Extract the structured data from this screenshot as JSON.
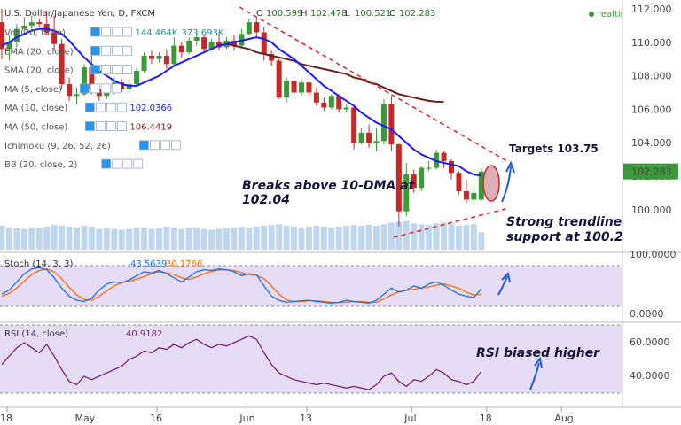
{
  "header": {
    "symbol": "U.S. Dollar/Japanese Yen, D, FXCM",
    "ohlc_prefix": "O",
    "open": "100.599",
    "high_label": "H",
    "high": "102.478",
    "low_label": "L",
    "low": "100.521",
    "close_label": "C",
    "close": "102.283",
    "realtime": "realtime"
  },
  "indicators": [
    {
      "label": "Vol (20, false)",
      "value1": "144.464K",
      "value2": "373.693K",
      "color1": "#0d9e9e",
      "color2": "#0d9e9e"
    },
    {
      "label": "EMA (20, close)",
      "value1": "",
      "value2": "",
      "color1": "#1a1aff",
      "color2": ""
    },
    {
      "label": "SMA (20, close)",
      "value1": "",
      "value2": "",
      "color1": "#ff7f00",
      "color2": ""
    },
    {
      "label": "MA (5, close)",
      "value1": "",
      "value2": "",
      "color1": "#ffa500",
      "color2": ""
    },
    {
      "label": "MA (10, close)",
      "value1": "102.0366",
      "value2": "",
      "color1": "#1a1aff",
      "color2": ""
    },
    {
      "label": "MA (50, close)",
      "value1": "106.4419",
      "value2": "",
      "color1": "#7a1f1f",
      "color2": ""
    },
    {
      "label": "Ichimoku (9, 26, 52, 26)",
      "value1": "",
      "value2": "",
      "color1": "",
      "color2": ""
    },
    {
      "label": "BB (20, close, 2)",
      "value1": "",
      "value2": "",
      "color1": "",
      "color2": ""
    }
  ],
  "stoch": {
    "label": "Stoch (14, 3, 3)",
    "k": "43.5639",
    "d": "30.1766",
    "k_color": "#1a73e8",
    "d_color": "#ff6a00"
  },
  "rsi": {
    "label": "RSI (14, close)",
    "value": "40.9182",
    "color": "#7a1f7a"
  },
  "annotations": {
    "breaks_line1": "Breaks above 10-DMA at",
    "breaks_line2": "102.04",
    "targets": "Targets 103.75",
    "support_line1": "Strong trendline",
    "support_line2": "support at 100.20",
    "rsi_note": "RSI biased higher"
  },
  "price_axis": {
    "ticks": [
      "112.000",
      "110.000",
      "108.000",
      "106.000",
      "104.000",
      "102.000",
      "100.000"
    ],
    "last_price": "102.283",
    "last_price_value": 102.283
  },
  "stoch_axis": {
    "ticks": [
      "100.0000",
      "0.0000"
    ]
  },
  "rsi_axis": {
    "ticks": [
      "60.0000",
      "40.0000"
    ]
  },
  "time_axis": {
    "ticks": [
      "18",
      "May",
      "16",
      "Jun",
      "13",
      "Jul",
      "18",
      "Aug"
    ]
  },
  "colors": {
    "up": "#3a9a3a",
    "down": "#c62828",
    "ma10": "#1a1aff",
    "ma50": "#6b1f1f",
    "panel": "#e6dcf5",
    "trend_red": "#e0202a",
    "arrow_blue": "#1e5bd8"
  },
  "chart_data": {
    "type": "candlestick",
    "ylim": [
      98.5,
      112.3
    ],
    "ohlc": [
      [
        111.2,
        112.0,
        109.0,
        109.6
      ],
      [
        109.6,
        110.4,
        108.9,
        110.0
      ],
      [
        110.0,
        111.1,
        109.7,
        110.8
      ],
      [
        110.8,
        111.5,
        110.5,
        111.0
      ],
      [
        111.0,
        111.6,
        110.8,
        111.2
      ],
      [
        111.2,
        111.4,
        110.9,
        111.1
      ],
      [
        111.1,
        111.9,
        110.4,
        110.6
      ],
      [
        110.6,
        111.6,
        109.5,
        109.9
      ],
      [
        109.9,
        110.2,
        107.2,
        107.5
      ],
      [
        107.5,
        107.9,
        106.5,
        106.8
      ],
      [
        106.8,
        107.3,
        106.3,
        106.9
      ],
      [
        106.9,
        108.7,
        106.8,
        108.5
      ],
      [
        108.5,
        109.2,
        106.9,
        107.2
      ],
      [
        107.2,
        107.3,
        106.5,
        106.8
      ],
      [
        106.8,
        107.5,
        106.6,
        107.1
      ],
      [
        107.1,
        107.9,
        106.9,
        107.6
      ],
      [
        107.6,
        107.8,
        107.0,
        107.2
      ],
      [
        107.2,
        107.8,
        107.0,
        107.5
      ],
      [
        107.5,
        108.5,
        107.4,
        108.3
      ],
      [
        108.3,
        109.4,
        108.2,
        109.2
      ],
      [
        109.2,
        109.5,
        108.7,
        109.0
      ],
      [
        109.0,
        109.4,
        108.8,
        109.2
      ],
      [
        109.2,
        109.6,
        108.4,
        108.7
      ],
      [
        108.7,
        110.3,
        108.6,
        109.8
      ],
      [
        109.8,
        110.0,
        109.1,
        109.4
      ],
      [
        109.4,
        110.3,
        109.3,
        110.1
      ],
      [
        110.1,
        110.6,
        109.8,
        110.3
      ],
      [
        110.3,
        110.5,
        109.4,
        109.6
      ],
      [
        109.6,
        110.2,
        109.5,
        110.0
      ],
      [
        110.0,
        110.6,
        109.5,
        109.7
      ],
      [
        109.7,
        110.3,
        109.6,
        110.1
      ],
      [
        110.1,
        110.4,
        109.5,
        109.8
      ],
      [
        109.8,
        110.8,
        109.7,
        110.5
      ],
      [
        110.5,
        111.4,
        110.4,
        111.2
      ],
      [
        111.2,
        111.5,
        110.3,
        110.6
      ],
      [
        110.6,
        110.9,
        108.9,
        109.3
      ],
      [
        109.3,
        109.5,
        108.6,
        108.9
      ],
      [
        108.9,
        109.0,
        106.6,
        106.7
      ],
      [
        106.7,
        107.9,
        106.4,
        107.7
      ],
      [
        107.7,
        107.9,
        106.8,
        107.0
      ],
      [
        107.0,
        107.8,
        106.8,
        107.6
      ],
      [
        107.6,
        107.7,
        106.8,
        107.0
      ],
      [
        107.0,
        107.3,
        106.2,
        106.4
      ],
      [
        106.4,
        106.7,
        105.9,
        106.1
      ],
      [
        106.1,
        106.9,
        106.0,
        106.8
      ],
      [
        106.8,
        106.9,
        105.8,
        106.0
      ],
      [
        106.0,
        106.3,
        105.8,
        106.1
      ],
      [
        106.1,
        106.2,
        103.6,
        104.0
      ],
      [
        104.0,
        104.9,
        103.9,
        104.6
      ],
      [
        104.6,
        105.1,
        103.7,
        104.0
      ],
      [
        104.0,
        104.9,
        103.5,
        104.1
      ],
      [
        104.1,
        106.6,
        103.9,
        106.3
      ],
      [
        106.3,
        106.8,
        103.5,
        103.9
      ],
      [
        103.9,
        104.0,
        99.0,
        99.9
      ],
      [
        99.9,
        102.8,
        99.6,
        102.1
      ],
      [
        102.1,
        102.4,
        101.0,
        101.3
      ],
      [
        101.3,
        102.6,
        101.1,
        102.5
      ],
      [
        102.5,
        102.9,
        102.3,
        102.5
      ],
      [
        102.5,
        103.6,
        102.4,
        103.4
      ],
      [
        103.4,
        103.5,
        102.5,
        102.9
      ],
      [
        102.9,
        103.0,
        101.8,
        102.2
      ],
      [
        102.2,
        102.3,
        100.9,
        101.1
      ],
      [
        101.1,
        101.8,
        100.4,
        100.6
      ],
      [
        100.6,
        101.4,
        100.3,
        101.0
      ],
      [
        100.6,
        102.478,
        100.521,
        102.283
      ]
    ],
    "volume": [
      3.0,
      2.8,
      2.7,
      2.6,
      2.8,
      2.7,
      2.9,
      3.1,
      3.0,
      2.9,
      2.8,
      3.0,
      2.9,
      2.6,
      2.7,
      2.6,
      2.5,
      2.6,
      2.8,
      2.7,
      2.6,
      2.7,
      2.9,
      2.8,
      2.6,
      2.7,
      2.8,
      2.6,
      2.5,
      2.6,
      2.7,
      2.8,
      2.9,
      2.8,
      2.9,
      3.0,
      3.1,
      3.2,
      3.0,
      2.9,
      2.8,
      2.9,
      3.0,
      2.9,
      2.8,
      2.9,
      3.0,
      3.1,
      3.0,
      3.1,
      3.0,
      3.2,
      3.4,
      3.5,
      3.6,
      3.3,
      3.2,
      3.1,
      3.3,
      3.4,
      3.2,
      3.0,
      3.1,
      3.2,
      2.2
    ],
    "ma10": [
      109.8,
      110.0,
      110.3,
      110.5,
      110.7,
      110.8,
      110.8,
      110.7,
      110.5,
      110.1,
      109.6,
      109.1,
      108.7,
      108.3,
      108.0,
      107.7,
      107.5,
      107.4,
      107.4,
      107.6,
      107.8,
      108.0,
      108.3,
      108.6,
      108.8,
      109.0,
      109.2,
      109.4,
      109.6,
      109.8,
      109.9,
      110.0,
      110.1,
      110.2,
      110.3,
      110.2,
      110.0,
      109.6,
      109.3,
      109.0,
      108.6,
      108.2,
      107.8,
      107.4,
      107.1,
      106.8,
      106.5,
      106.2,
      105.8,
      105.5,
      105.2,
      105.0,
      104.8,
      104.4,
      104.0,
      103.6,
      103.3,
      103.1,
      102.9,
      102.8,
      102.7,
      102.6,
      102.3,
      102.1,
      102.04
    ],
    "ma50": [
      null,
      null,
      null,
      null,
      null,
      null,
      null,
      null,
      null,
      null,
      null,
      null,
      null,
      null,
      null,
      null,
      null,
      null,
      null,
      null,
      null,
      null,
      null,
      null,
      null,
      null,
      null,
      null,
      null,
      null,
      109.9,
      109.8,
      109.7,
      109.6,
      109.4,
      109.3,
      109.2,
      109.1,
      109.0,
      108.9,
      108.7,
      108.6,
      108.5,
      108.4,
      108.3,
      108.2,
      108.1,
      107.9,
      107.8,
      107.6,
      107.5,
      107.3,
      107.1,
      106.9,
      106.8,
      106.7,
      106.6,
      106.5,
      106.45,
      106.44,
      null,
      null,
      null,
      null,
      null
    ],
    "stoch_k": [
      30,
      40,
      60,
      80,
      92,
      95,
      90,
      70,
      45,
      25,
      15,
      12,
      20,
      40,
      55,
      60,
      58,
      65,
      75,
      85,
      82,
      88,
      80,
      70,
      60,
      72,
      85,
      90,
      88,
      92,
      90,
      85,
      75,
      80,
      78,
      50,
      25,
      15,
      10,
      12,
      14,
      15,
      12,
      10,
      8,
      10,
      15,
      12,
      10,
      8,
      15,
      30,
      45,
      35,
      40,
      50,
      45,
      55,
      60,
      52,
      40,
      30,
      25,
      22,
      43.56
    ],
    "stoch_d": [
      25,
      32,
      45,
      62,
      78,
      88,
      92,
      85,
      68,
      47,
      28,
      17,
      15,
      25,
      38,
      50,
      58,
      62,
      67,
      73,
      80,
      85,
      82,
      78,
      70,
      66,
      72,
      80,
      86,
      89,
      90,
      88,
      83,
      78,
      76,
      68,
      50,
      30,
      16,
      12,
      12,
      14,
      14,
      12,
      10,
      9,
      10,
      12,
      12,
      10,
      10,
      18,
      28,
      36,
      39,
      42,
      45,
      48,
      52,
      55,
      50,
      45,
      35,
      28,
      30.18
    ],
    "rsi": [
      45,
      50,
      55,
      58,
      55,
      52,
      57,
      50,
      42,
      35,
      33,
      38,
      36,
      38,
      40,
      42,
      44,
      48,
      50,
      53,
      52,
      55,
      54,
      57,
      55,
      58,
      60,
      57,
      55,
      57,
      56,
      58,
      60,
      62,
      60,
      52,
      45,
      40,
      38,
      36,
      35,
      34,
      33,
      34,
      33,
      32,
      31,
      32,
      31,
      30,
      33,
      38,
      40,
      35,
      32,
      36,
      35,
      38,
      42,
      40,
      36,
      35,
      33,
      35,
      40.92
    ],
    "time_ticks": [
      {
        "label": "18",
        "index": 0
      },
      {
        "label": "May",
        "index": 10
      },
      {
        "label": "16",
        "index": 20
      },
      {
        "label": "Jun",
        "index": 32
      },
      {
        "label": "13",
        "index": 40
      },
      {
        "label": "Jul",
        "index": 54
      },
      {
        "label": "18",
        "index": 64
      },
      {
        "label": "Aug",
        "index": 74
      }
    ],
    "stoch_ylim": [
      0,
      100
    ],
    "rsi_ylim": [
      25,
      68
    ]
  }
}
